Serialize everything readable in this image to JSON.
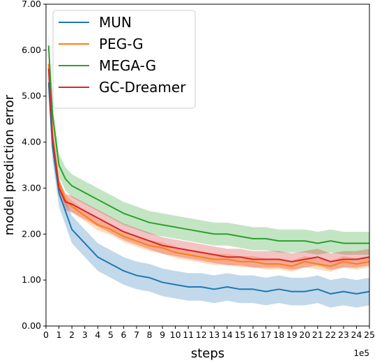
{
  "chart_data": {
    "type": "line",
    "title": "",
    "xlabel": "steps",
    "ylabel": "model prediction error",
    "x_offset_text": "1e5",
    "xlim": [
      0,
      25
    ],
    "ylim": [
      0,
      7
    ],
    "x_ticks": [
      0,
      1,
      2,
      3,
      4,
      5,
      6,
      7,
      8,
      9,
      10,
      11,
      12,
      13,
      14,
      15,
      16,
      17,
      18,
      19,
      20,
      21,
      22,
      23,
      24,
      25
    ],
    "y_ticks": [
      0,
      1,
      2,
      3,
      4,
      5,
      6,
      7
    ],
    "y_tick_labels": [
      "0.00",
      "1.00",
      "2.00",
      "3.00",
      "4.00",
      "5.00",
      "6.00",
      "7.00"
    ],
    "grid": false,
    "legend_position": "top-left",
    "shaded_band": "spread around each line",
    "x": [
      0.2,
      0.5,
      1,
      1.5,
      2,
      3,
      4,
      5,
      6,
      7,
      8,
      9,
      10,
      11,
      12,
      13,
      14,
      15,
      16,
      17,
      18,
      19,
      20,
      21,
      22,
      23,
      24,
      25
    ],
    "series": [
      {
        "name": "MUN",
        "color": "#1f77b4",
        "values": [
          5.3,
          3.9,
          2.9,
          2.5,
          2.1,
          1.8,
          1.5,
          1.35,
          1.2,
          1.1,
          1.05,
          0.95,
          0.9,
          0.85,
          0.85,
          0.8,
          0.85,
          0.8,
          0.8,
          0.75,
          0.8,
          0.75,
          0.75,
          0.8,
          0.7,
          0.75,
          0.7,
          0.75
        ],
        "band": [
          0.3,
          0.3,
          0.3,
          0.3,
          0.3,
          0.3,
          0.3,
          0.3,
          0.3,
          0.3,
          0.3,
          0.3,
          0.3,
          0.3,
          0.3,
          0.3,
          0.3,
          0.3,
          0.3,
          0.3,
          0.3,
          0.3,
          0.3,
          0.3,
          0.3,
          0.3,
          0.3,
          0.3
        ]
      },
      {
        "name": "PEG-G",
        "color": "#ff7f0e",
        "values": [
          5.7,
          4.2,
          3.1,
          2.75,
          2.6,
          2.4,
          2.2,
          2.1,
          1.95,
          1.85,
          1.75,
          1.7,
          1.6,
          1.55,
          1.5,
          1.45,
          1.45,
          1.4,
          1.4,
          1.35,
          1.35,
          1.3,
          1.4,
          1.35,
          1.3,
          1.4,
          1.35,
          1.4
        ],
        "band": [
          0.12,
          0.12,
          0.12,
          0.12,
          0.12,
          0.12,
          0.12,
          0.12,
          0.12,
          0.12,
          0.12,
          0.12,
          0.12,
          0.12,
          0.12,
          0.12,
          0.12,
          0.12,
          0.12,
          0.12,
          0.12,
          0.12,
          0.12,
          0.12,
          0.12,
          0.12,
          0.12,
          0.12
        ]
      },
      {
        "name": "MEGA-G",
        "color": "#2ca02c",
        "values": [
          6.1,
          4.6,
          3.5,
          3.2,
          3.05,
          2.9,
          2.75,
          2.6,
          2.45,
          2.35,
          2.25,
          2.2,
          2.15,
          2.1,
          2.05,
          2.0,
          2.0,
          1.95,
          1.9,
          1.9,
          1.85,
          1.85,
          1.85,
          1.8,
          1.85,
          1.8,
          1.8,
          1.8
        ],
        "band": [
          0.25,
          0.25,
          0.25,
          0.25,
          0.25,
          0.25,
          0.25,
          0.25,
          0.25,
          0.25,
          0.25,
          0.25,
          0.25,
          0.25,
          0.25,
          0.25,
          0.25,
          0.25,
          0.25,
          0.25,
          0.25,
          0.25,
          0.25,
          0.25,
          0.25,
          0.25,
          0.25,
          0.25
        ]
      },
      {
        "name": "GC-Dreamer",
        "color": "#d62728",
        "values": [
          5.6,
          4.1,
          3.0,
          2.7,
          2.65,
          2.5,
          2.35,
          2.2,
          2.05,
          1.95,
          1.85,
          1.75,
          1.7,
          1.65,
          1.6,
          1.55,
          1.5,
          1.5,
          1.45,
          1.45,
          1.45,
          1.4,
          1.45,
          1.5,
          1.4,
          1.45,
          1.45,
          1.5
        ],
        "band": [
          0.18,
          0.18,
          0.18,
          0.18,
          0.18,
          0.18,
          0.18,
          0.18,
          0.18,
          0.18,
          0.18,
          0.18,
          0.18,
          0.18,
          0.18,
          0.18,
          0.18,
          0.18,
          0.18,
          0.18,
          0.18,
          0.18,
          0.18,
          0.18,
          0.18,
          0.18,
          0.18,
          0.18
        ]
      }
    ]
  }
}
